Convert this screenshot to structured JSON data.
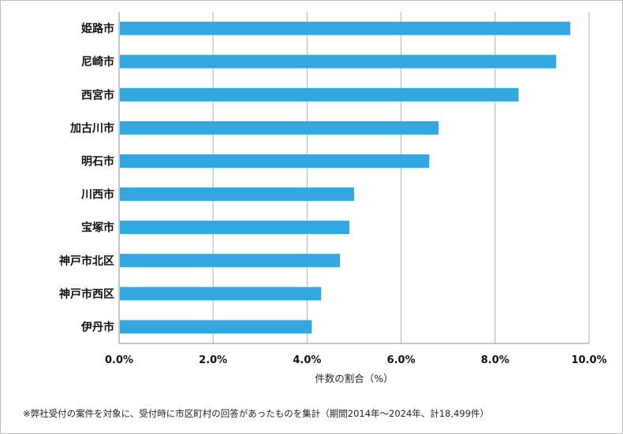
{
  "chart_data": {
    "type": "bar",
    "orientation": "horizontal",
    "categories": [
      "姫路市",
      "尼崎市",
      "西宮市",
      "加古川市",
      "明石市",
      "川西市",
      "宝塚市",
      "神戸市北区",
      "神戸市西区",
      "伊丹市"
    ],
    "values": [
      9.6,
      9.3,
      8.5,
      6.8,
      6.6,
      5.0,
      4.9,
      4.7,
      4.3,
      4.1
    ],
    "xlabel": "件数の割合（%）",
    "xlim": [
      0,
      10
    ],
    "ticks": [
      "0.0%",
      "2.0%",
      "4.0%",
      "6.0%",
      "8.0%",
      "10.0%"
    ],
    "tick_values": [
      0,
      2,
      4,
      6,
      8,
      10
    ],
    "grid": true,
    "bar_color": "#33a7e0",
    "grid_color": "#b0b0b0"
  },
  "footnote": "※弊社受付の案件を対象に、受付時に市区町村の回答があったものを集計（期間2014年～2024年、計18,499件）"
}
